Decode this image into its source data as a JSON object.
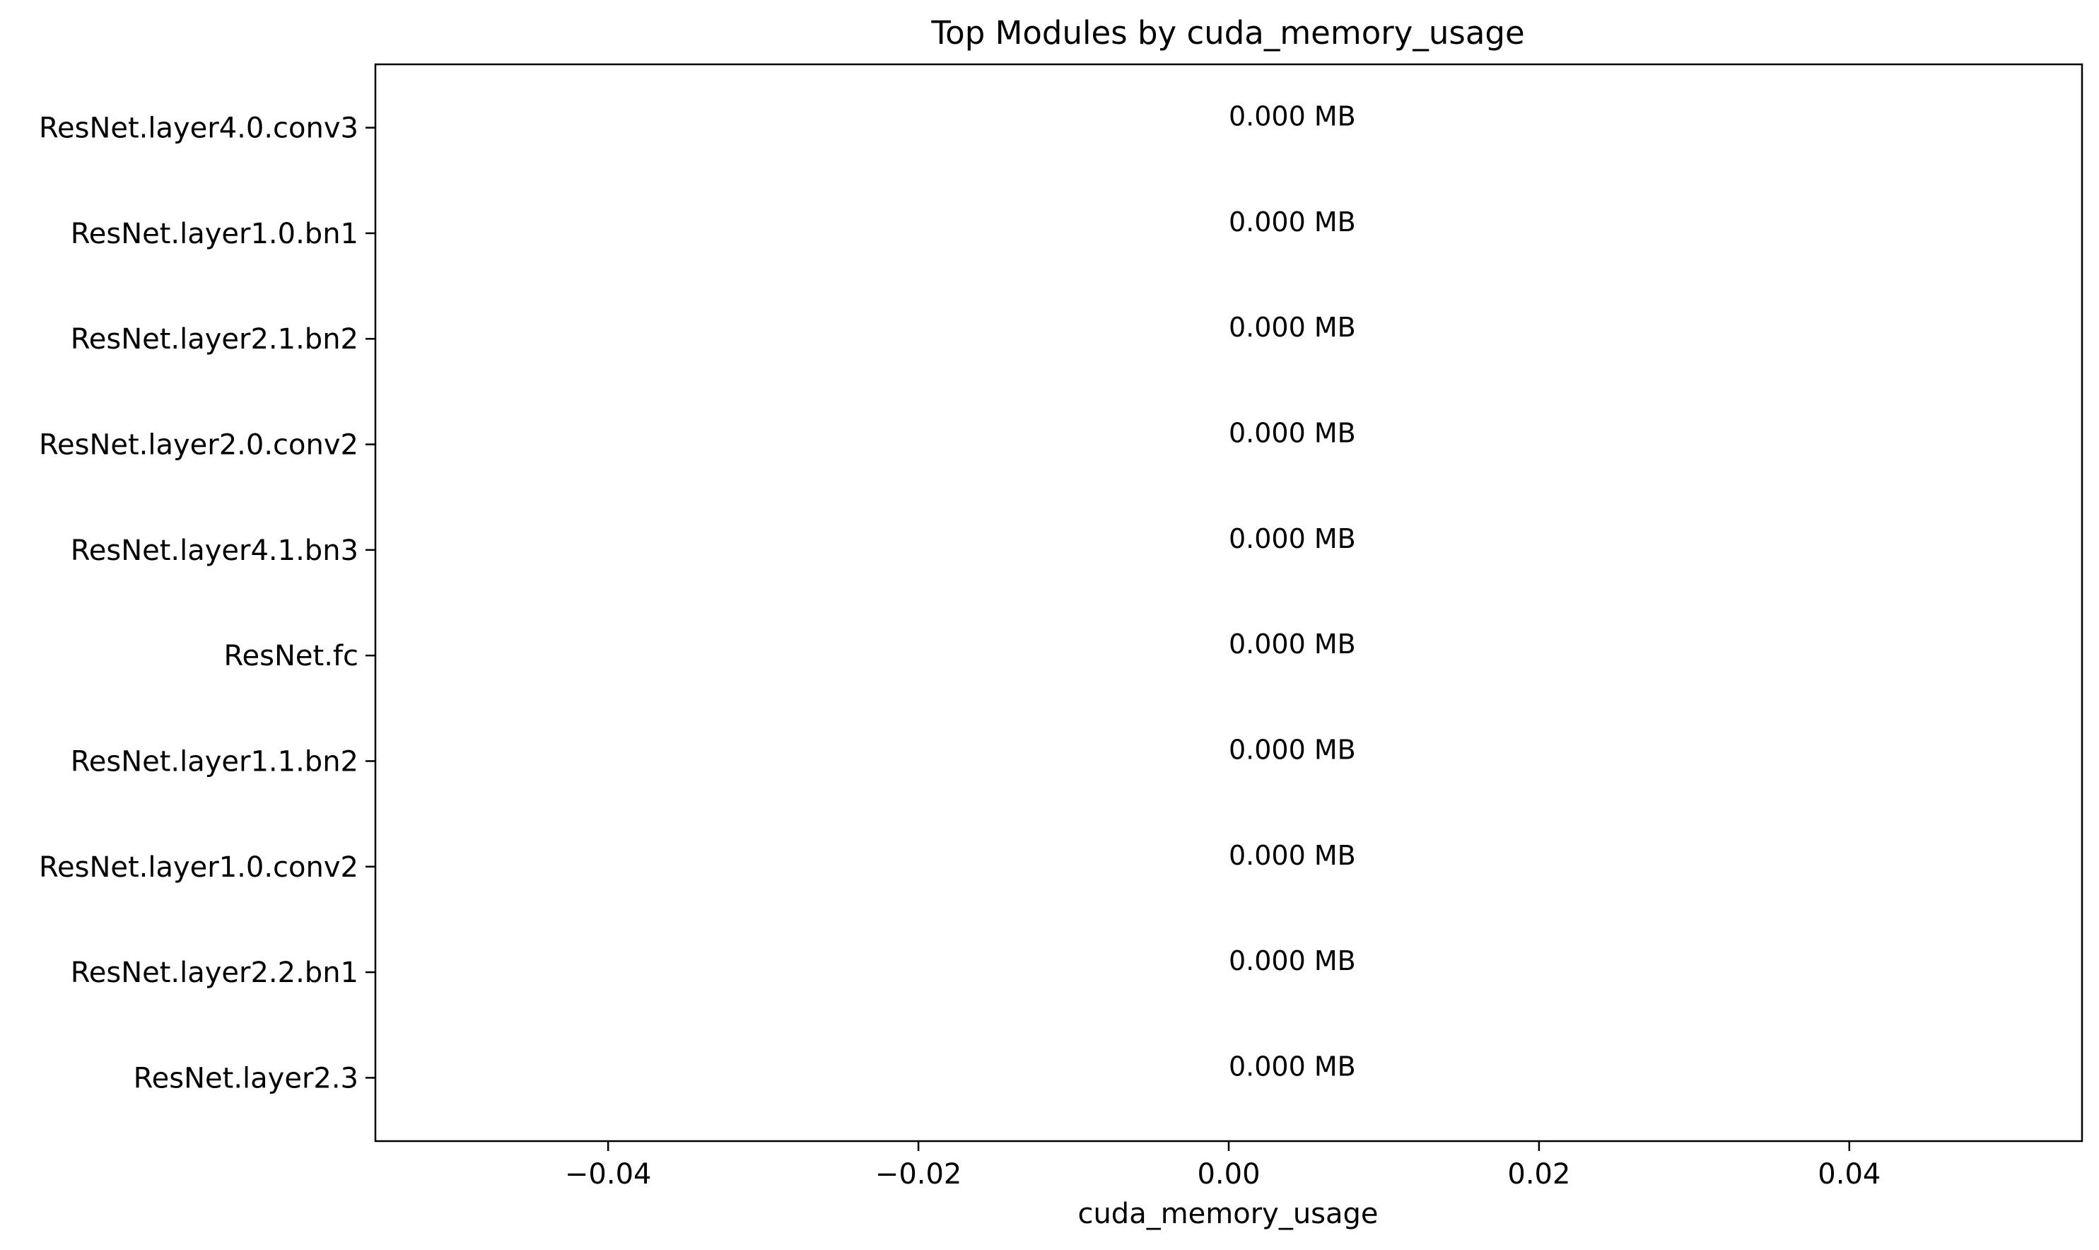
{
  "chart_data": {
    "type": "bar",
    "orientation": "horizontal",
    "title": "Top Modules by cuda_memory_usage",
    "xlabel": "cuda_memory_usage",
    "ylabel": "",
    "categories": [
      "ResNet.layer4.0.conv3",
      "ResNet.layer1.0.bn1",
      "ResNet.layer2.1.bn2",
      "ResNet.layer2.0.conv2",
      "ResNet.layer4.1.bn3",
      "ResNet.fc",
      "ResNet.layer1.1.bn2",
      "ResNet.layer1.0.conv2",
      "ResNet.layer2.2.bn1",
      "ResNet.layer2.3"
    ],
    "values": [
      0,
      0,
      0,
      0,
      0,
      0,
      0,
      0,
      0,
      0
    ],
    "data_labels": [
      "0.000 MB",
      "0.000 MB",
      "0.000 MB",
      "0.000 MB",
      "0.000 MB",
      "0.000 MB",
      "0.000 MB",
      "0.000 MB",
      "0.000 MB",
      "0.000 MB"
    ],
    "xlim": [
      -0.055,
      0.055
    ],
    "xticks": [
      -0.04,
      -0.02,
      0.0,
      0.02,
      0.04
    ],
    "xtick_labels": [
      "−0.04",
      "−0.02",
      "0.00",
      "0.02",
      "0.04"
    ],
    "grid": false,
    "legend": "none",
    "bar_color": "#1f77b4"
  }
}
